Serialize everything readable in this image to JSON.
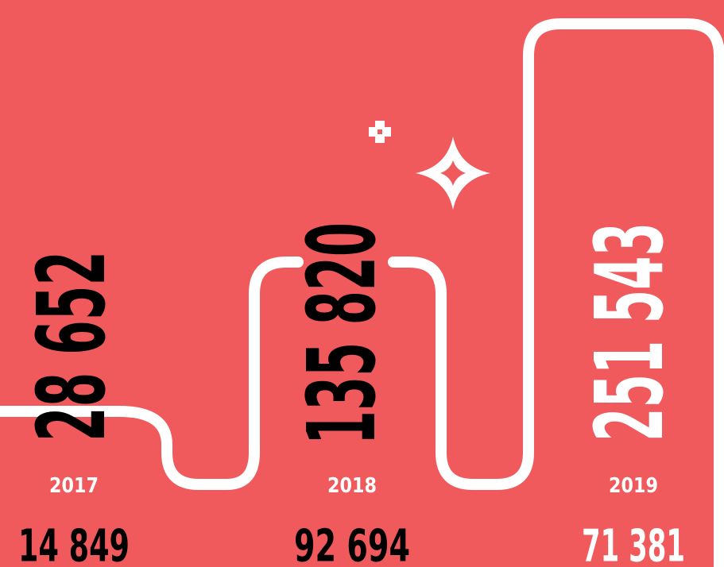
{
  "items": [
    {
      "year": "2017",
      "value": "28 652",
      "sub": "14 849"
    },
    {
      "year": "2018",
      "value": "135 820",
      "sub": "92 694"
    },
    {
      "year": "2019",
      "value": "251 543",
      "sub": "71 381"
    }
  ]
}
